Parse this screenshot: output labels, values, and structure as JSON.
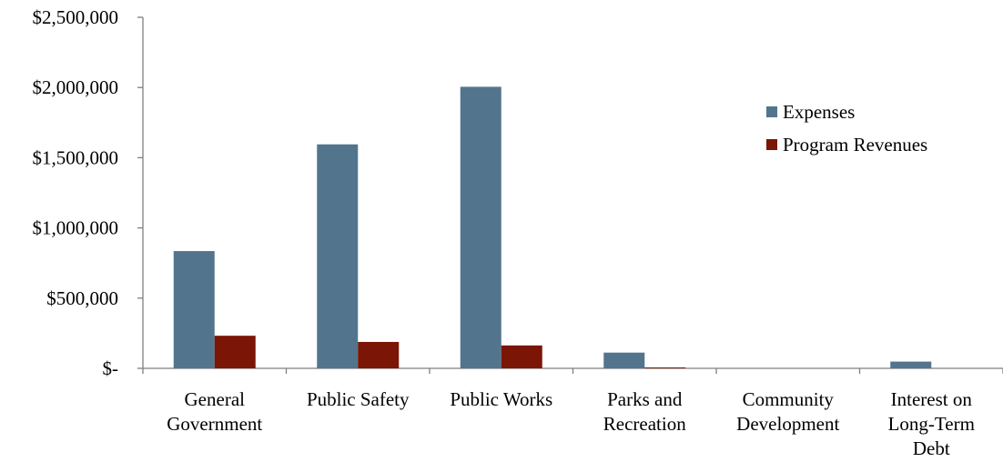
{
  "chart_data": {
    "type": "bar",
    "title": "",
    "xlabel": "",
    "ylabel": "",
    "categories": [
      [
        "General",
        "Government"
      ],
      [
        "Public Safety"
      ],
      [
        "Public Works"
      ],
      [
        "Parks and",
        "Recreation"
      ],
      [
        "Community",
        "Development"
      ],
      [
        "Interest on",
        "Long-Term",
        "Debt"
      ]
    ],
    "series": [
      {
        "name": "Expenses",
        "color": "#52758d",
        "values": [
          835000,
          1595000,
          2005000,
          112000,
          0,
          48000
        ]
      },
      {
        "name": "Program Revenues",
        "color": "#7b1505",
        "values": [
          232000,
          188000,
          163000,
          6000,
          0,
          0
        ]
      }
    ],
    "ylim": [
      0,
      2500000
    ],
    "yticks": [
      {
        "value": 0,
        "label": "$-"
      },
      {
        "value": 500000,
        "label": "$500,000"
      },
      {
        "value": 1000000,
        "label": "$1,000,000"
      },
      {
        "value": 1500000,
        "label": "$1,500,000"
      },
      {
        "value": 2000000,
        "label": "$2,000,000"
      },
      {
        "value": 2500000,
        "label": "$2,500,000"
      }
    ],
    "grid": false,
    "legend_position": "right"
  }
}
